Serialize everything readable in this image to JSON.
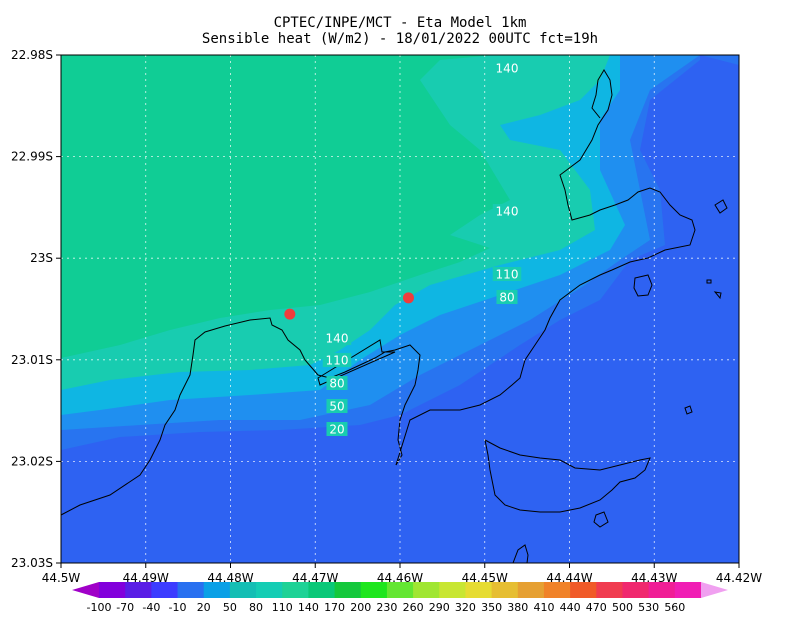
{
  "header": {
    "title_line1": "CPTEC/INPE/MCT -  Eta Model 1km",
    "title_line2": "Sensible heat (W/m2) - 18/01/2022 00UTC fct=19h"
  },
  "map": {
    "lon_ticks": [
      "44.5W",
      "44.49W",
      "44.48W",
      "44.47W",
      "44.46W",
      "44.45W",
      "44.44W",
      "44.43W",
      "44.42W"
    ],
    "lat_ticks": [
      "22.98S",
      "22.99S",
      "23S",
      "23.01S",
      "23.02S",
      "23.03S"
    ],
    "contour_labels": [
      "140",
      "140",
      "110",
      "80",
      "140",
      "110",
      "80",
      "50",
      "20"
    ],
    "markers": [
      {
        "name": "station-west",
        "lon": -44.473,
        "lat": -23.0055
      },
      {
        "name": "station-east",
        "lon": -44.459,
        "lat": -23.0039
      }
    ],
    "marker_color": "#f03c3c"
  },
  "colorbar": {
    "labels": [
      "-100",
      "-70",
      "-40",
      "-10",
      "20",
      "50",
      "80",
      "110",
      "140",
      "170",
      "200",
      "230",
      "260",
      "290",
      "320",
      "350",
      "380",
      "410",
      "440",
      "470",
      "500",
      "530",
      "560"
    ],
    "colors": [
      "#a000c8",
      "#8200dc",
      "#5a1ee6",
      "#3c3cff",
      "#2870f0",
      "#0aa0e6",
      "#14beb4",
      "#14cdb4",
      "#1ed296",
      "#0ac878",
      "#14c83c",
      "#1ee61e",
      "#64e632",
      "#a0e632",
      "#c8e632",
      "#e6dc32",
      "#e6be32",
      "#e6a032",
      "#f08228",
      "#f05a28",
      "#f03c50",
      "#f0286e",
      "#f01e96",
      "#f01eb4",
      "#f0a0f0"
    ]
  },
  "colors": {
    "field_20": "#2e62f2",
    "field_50": "#2874f0",
    "field_80": "#1f8ff0",
    "field_110": "#0fb6e3",
    "field_140": "#18ccb0",
    "field_170": "#10cd95"
  }
}
